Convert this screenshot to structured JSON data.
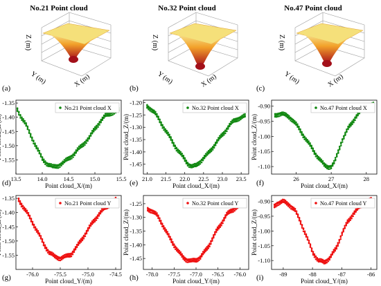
{
  "cloud_titles": [
    "No.21 Point cloud",
    "No.32 Point cloud",
    "No.47 Point cloud"
  ],
  "surface_axes": {
    "x": "X (m)",
    "y": "Y (m)",
    "z": "Z (m)"
  },
  "panel_letters": [
    "(a)",
    "(b)",
    "(c)",
    "(d)",
    "(e)",
    "(f)",
    "(g)",
    "(h)",
    "(i)"
  ],
  "colors": {
    "x_series": "#118811",
    "y_series": "#ee1111",
    "surface_top": "#f2e27a",
    "surface_mid": "#f08a20",
    "surface_deep": "#b0101a"
  },
  "chart_data": [
    {
      "type": "scatter",
      "legend": "No.21 Point cloud X",
      "xlabel": "Point cloud_X/(m)",
      "ylabel": "Point cloud_Z/(m)",
      "xlim": [
        13.5,
        15.5
      ],
      "ylim": [
        -1.6,
        -1.34
      ],
      "xticks": [
        "13.5",
        "14.0",
        "14.5",
        "15.0",
        "15.5"
      ],
      "yticks": [
        "-1.35",
        "-1.40",
        "-1.45",
        "-1.50",
        "-1.55"
      ],
      "x": [
        13.5,
        13.55,
        13.6,
        13.7,
        13.8,
        13.9,
        14.0,
        14.1,
        14.2,
        14.3,
        14.4,
        14.5,
        14.6,
        14.7,
        14.8,
        14.9,
        15.0,
        15.1,
        15.2,
        15.3,
        15.4,
        15.45
      ],
      "y": [
        -1.36,
        -1.38,
        -1.4,
        -1.43,
        -1.47,
        -1.51,
        -1.545,
        -1.565,
        -1.575,
        -1.57,
        -1.56,
        -1.545,
        -1.53,
        -1.51,
        -1.49,
        -1.47,
        -1.44,
        -1.415,
        -1.395,
        -1.385,
        -1.38,
        -1.375
      ]
    },
    {
      "type": "scatter",
      "legend": "No.32 Point cloud X",
      "xlabel": "Point cloud_X/(m)",
      "ylabel": "Point cloud_Z/(m)",
      "xlim": [
        20.9,
        23.7
      ],
      "ylim": [
        -1.49,
        -1.19
      ],
      "xticks": [
        "21.0",
        "21.5",
        "22.0",
        "22.5",
        "23.0",
        "23.5"
      ],
      "yticks": [
        "-1.20",
        "-1.25",
        "-1.30",
        "-1.35",
        "-1.40",
        "-1.45"
      ],
      "x": [
        21.0,
        21.1,
        21.2,
        21.4,
        21.6,
        21.8,
        22.0,
        22.1,
        22.2,
        22.3,
        22.4,
        22.6,
        22.8,
        23.0,
        23.2,
        23.3,
        23.4,
        23.5,
        23.6
      ],
      "y": [
        -1.215,
        -1.225,
        -1.24,
        -1.29,
        -1.34,
        -1.39,
        -1.43,
        -1.45,
        -1.46,
        -1.455,
        -1.44,
        -1.41,
        -1.37,
        -1.33,
        -1.29,
        -1.275,
        -1.265,
        -1.26,
        -1.255
      ]
    },
    {
      "type": "scatter",
      "legend": "No.47 Point cloud X",
      "xlabel": "Point cloud_X/(m)",
      "ylabel": "Point cloud_Z/(m)",
      "xlim": [
        25.3,
        28.3
      ],
      "ylim": [
        -1.125,
        -0.88
      ],
      "xticks": [
        "26",
        "27",
        "28"
      ],
      "yticks": [
        "-0.90",
        "-0.95",
        "-1.00",
        "-1.05",
        "-1.10"
      ],
      "x": [
        25.4,
        25.5,
        25.6,
        25.7,
        25.8,
        25.9,
        26.0,
        26.2,
        26.4,
        26.6,
        26.8,
        26.9,
        27.0,
        27.1,
        27.2,
        27.3,
        27.5,
        27.7,
        27.9,
        28.1,
        28.2
      ],
      "y": [
        -0.93,
        -0.925,
        -0.925,
        -0.93,
        -0.935,
        -0.945,
        -0.96,
        -0.995,
        -1.03,
        -1.065,
        -1.095,
        -1.1,
        -1.1,
        -1.085,
        -1.05,
        -1.015,
        -0.97,
        -0.935,
        -0.91,
        -0.9,
        -0.895
      ]
    },
    {
      "type": "scatter",
      "legend": "No.21 Point cloud Y",
      "xlabel": "Point cloud_Y/(m)",
      "ylabel": "Point cloud_Z/(m)",
      "xlim": [
        -76.3,
        -74.4
      ],
      "ylim": [
        -1.6,
        -1.34
      ],
      "xticks": [
        "-76.0",
        "-75.5",
        "-75.0",
        "-74.5"
      ],
      "yticks": [
        "-1.35",
        "-1.40",
        "-1.45",
        "-1.50",
        "-1.55"
      ],
      "x": [
        -76.25,
        -76.2,
        -76.1,
        -76.0,
        -75.9,
        -75.8,
        -75.7,
        -75.6,
        -75.5,
        -75.4,
        -75.3,
        -75.2,
        -75.1,
        -75.0,
        -74.9,
        -74.8,
        -74.7,
        -74.6,
        -74.5
      ],
      "y": [
        -1.355,
        -1.37,
        -1.4,
        -1.435,
        -1.47,
        -1.51,
        -1.54,
        -1.555,
        -1.56,
        -1.555,
        -1.545,
        -1.52,
        -1.49,
        -1.46,
        -1.43,
        -1.405,
        -1.385,
        -1.37,
        -1.355
      ]
    },
    {
      "type": "scatter",
      "legend": "No.32 Point cloud Y",
      "xlabel": "Point cloud_Y/(m)",
      "ylabel": "Point cloud_Z/(m)",
      "xlim": [
        -78.2,
        -75.8
      ],
      "ylim": [
        -1.49,
        -1.22
      ],
      "xticks": [
        "-78.0",
        "-77.5",
        "-77.0",
        "-76.5",
        "-76.0"
      ],
      "yticks": [
        "-1.25",
        "-1.30",
        "-1.35",
        "-1.40",
        "-1.45"
      ],
      "x": [
        -78.1,
        -78.0,
        -77.9,
        -77.8,
        -77.7,
        -77.6,
        -77.5,
        -77.4,
        -77.3,
        -77.2,
        -77.1,
        -77.0,
        -76.9,
        -76.8,
        -76.7,
        -76.6,
        -76.5,
        -76.4,
        -76.3,
        -76.2,
        -76.1,
        -76.0
      ],
      "y": [
        -1.27,
        -1.275,
        -1.29,
        -1.315,
        -1.345,
        -1.375,
        -1.4,
        -1.425,
        -1.445,
        -1.455,
        -1.46,
        -1.455,
        -1.445,
        -1.425,
        -1.4,
        -1.37,
        -1.34,
        -1.315,
        -1.29,
        -1.275,
        -1.265,
        -1.26
      ]
    },
    {
      "type": "scatter",
      "legend": "No.47 Point cloud Y",
      "xlabel": "Point cloud_Y/(m)",
      "ylabel": "Point cloud_Z/(m)",
      "xlim": [
        -89.4,
        -85.8
      ],
      "ylim": [
        -1.13,
        -0.88
      ],
      "xticks": [
        "-89",
        "-88",
        "-87",
        "-86"
      ],
      "yticks": [
        "-0.90",
        "-0.95",
        "-1.00",
        "-1.05",
        "-1.10"
      ],
      "x": [
        -89.3,
        -89.2,
        -89.0,
        -88.8,
        -88.6,
        -88.4,
        -88.2,
        -88.0,
        -87.8,
        -87.6,
        -87.4,
        -87.2,
        -87.0,
        -86.8,
        -86.6,
        -86.4,
        -86.2,
        -86.0
      ],
      "y": [
        -0.915,
        -0.905,
        -0.9,
        -0.91,
        -0.93,
        -0.97,
        -1.02,
        -1.07,
        -1.1,
        -1.105,
        -1.09,
        -1.06,
        -1.01,
        -0.97,
        -0.94,
        -0.92,
        -0.905,
        -0.895
      ]
    }
  ]
}
